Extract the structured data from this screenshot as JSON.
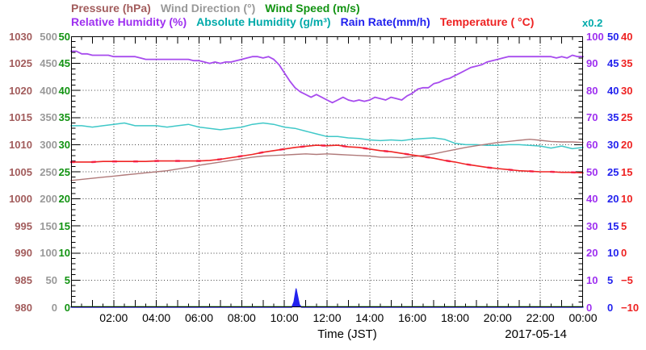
{
  "chart_data": {
    "type": "line",
    "title": "",
    "date": "2017-05-14",
    "grid": {
      "color": "#444444",
      "style": "dotted"
    },
    "x": {
      "label": "Time (JST)",
      "min_hours": 0,
      "max_hours": 24,
      "tick_labels": [
        "02:00",
        "04:00",
        "06:00",
        "08:00",
        "10:00",
        "12:00",
        "14:00",
        "16:00",
        "18:00",
        "20:00",
        "22:00",
        "00:00"
      ],
      "date": "2017-05-14"
    },
    "scale_note": {
      "label": "x0.2",
      "color": "#00AAAA",
      "applies_to": "absolute_humidity"
    },
    "axes": {
      "pressure": {
        "label": "Pressure (hPa)",
        "side": "left",
        "range": [
          980,
          1030
        ],
        "color": "#A25C5C",
        "tick_labels": [
          "1030",
          "1025",
          "1020",
          "1015",
          "1010",
          "1005",
          "1000",
          "995",
          "990",
          "985",
          "980"
        ]
      },
      "wind_direction": {
        "label": "Wind Direction (°)",
        "side": "left",
        "range": [
          0,
          500
        ],
        "color": "#999999",
        "tick_labels": [
          "500",
          "450",
          "400",
          "350",
          "300",
          "250",
          "200",
          "150",
          "100",
          "50",
          "0"
        ]
      },
      "wind_speed": {
        "label": "Wind Speed (m/s)",
        "side": "left",
        "range": [
          0,
          50
        ],
        "color": "#129312",
        "tick_labels": [
          "50",
          "45",
          "40",
          "35",
          "30",
          "25",
          "20",
          "15",
          "10",
          "5",
          "0"
        ]
      },
      "relative_humidity": {
        "label": "Relative Humidity (%)",
        "side": "right",
        "range": [
          0,
          100
        ],
        "color": "#9E30F0",
        "tick_labels": [
          "100",
          "90",
          "80",
          "70",
          "60",
          "50",
          "40",
          "30",
          "20",
          "10",
          "0"
        ]
      },
      "rain_rate": {
        "label": "Rain Rate(mm/h)",
        "side": "right",
        "range": [
          0,
          50
        ],
        "color": "#2222EE",
        "tick_labels": [
          "50",
          "45",
          "40",
          "35",
          "30",
          "25",
          "20",
          "15",
          "10",
          "5",
          "0"
        ]
      },
      "temperature": {
        "label": "Temperature ( °C)",
        "side": "right",
        "range": [
          -10,
          40
        ],
        "color": "#EE2222",
        "tick_labels": [
          "40",
          "35",
          "30",
          "25",
          "20",
          "15",
          "10",
          "5",
          "0",
          "−5",
          "−10"
        ]
      },
      "absolute_humidity": {
        "label": "Absolute Humidity (g/m³)",
        "side": "none",
        "range": [
          0,
          20
        ],
        "color": "#00AAAA",
        "note": "read on Relative Humidity axis times 0.2"
      }
    },
    "legend_rows": {
      "row1": [
        "pressure",
        "wind_direction",
        "wind_speed"
      ],
      "row2": [
        "relative_humidity",
        "absolute_humidity",
        "rain_rate",
        "temperature"
      ]
    },
    "temperature_fringe_color": "#FF3FA8",
    "series": [
      {
        "name": "wind_direction",
        "axis": "wind_direction",
        "color": "#999999",
        "width": 1.4,
        "points": [
          [
            0,
            1
          ],
          [
            24,
            1
          ]
        ]
      },
      {
        "name": "wind_speed",
        "axis": "wind_speed",
        "color": "#2BA82B",
        "width": 1.4,
        "points": [
          [
            0,
            0.1
          ],
          [
            24,
            0.1
          ]
        ]
      },
      {
        "name": "rain_rate",
        "axis": "rain_rate",
        "color": "#2222EE",
        "width": 1.3,
        "fill": true,
        "points": [
          [
            0,
            0
          ],
          [
            10.35,
            0
          ],
          [
            10.45,
            1.0
          ],
          [
            10.55,
            3.4
          ],
          [
            10.7,
            0.5
          ],
          [
            10.8,
            0
          ],
          [
            24,
            0
          ]
        ]
      },
      {
        "name": "absolute_humidity",
        "axis": "absolute_humidity",
        "color": "#3FC8C8",
        "width": 1.5,
        "x_step": 0.5,
        "values": [
          13.4,
          13.4,
          13.3,
          13.4,
          13.5,
          13.6,
          13.4,
          13.4,
          13.4,
          13.3,
          13.4,
          13.5,
          13.3,
          13.2,
          13.1,
          13.2,
          13.3,
          13.5,
          13.6,
          13.5,
          13.3,
          13.2,
          13.0,
          12.8,
          12.6,
          12.6,
          12.5,
          12.45,
          12.35,
          12.3,
          12.35,
          12.3,
          12.4,
          12.45,
          12.5,
          12.4,
          12.1,
          12.0,
          12.0,
          11.95,
          11.95,
          12.0,
          12.0,
          11.95,
          11.9,
          11.75,
          11.9,
          11.7,
          11.8
        ]
      },
      {
        "name": "pressure",
        "axis": "pressure",
        "color": "#B07A7A",
        "width": 1.4,
        "x_step": 0.5,
        "values": [
          1003.4,
          1003.6,
          1003.8,
          1004.0,
          1004.2,
          1004.4,
          1004.6,
          1004.8,
          1005.0,
          1005.2,
          1005.5,
          1005.8,
          1006.2,
          1006.5,
          1006.8,
          1007.1,
          1007.4,
          1007.7,
          1007.9,
          1008.0,
          1008.1,
          1008.2,
          1008.3,
          1008.2,
          1008.3,
          1008.2,
          1008.1,
          1008.0,
          1007.9,
          1007.7,
          1007.7,
          1007.6,
          1007.8,
          1008.0,
          1008.3,
          1008.7,
          1009.1,
          1009.5,
          1009.8,
          1010.1,
          1010.4,
          1010.6,
          1010.8,
          1011.0,
          1010.8,
          1010.6,
          1010.5,
          1010.5,
          1010.4
        ]
      },
      {
        "name": "temperature",
        "axis": "temperature",
        "color": "#F02525",
        "width": 1.6,
        "x_step": 0.5,
        "values": [
          16.8,
          16.8,
          16.8,
          16.9,
          16.9,
          16.9,
          16.9,
          16.9,
          17.0,
          17.0,
          17.0,
          17.0,
          17.0,
          17.1,
          17.3,
          17.6,
          17.9,
          18.2,
          18.6,
          18.9,
          19.2,
          19.5,
          19.7,
          19.9,
          19.8,
          19.9,
          19.6,
          19.5,
          19.2,
          18.9,
          18.7,
          18.4,
          18.1,
          17.8,
          17.5,
          17.1,
          16.8,
          16.4,
          16.1,
          15.8,
          15.6,
          15.4,
          15.2,
          15.1,
          15.0,
          15.0,
          14.9,
          14.9,
          14.8
        ]
      },
      {
        "name": "relative_humidity",
        "axis": "relative_humidity",
        "color": "#A74BEE",
        "width": 1.8,
        "x_step": 0.25,
        "values": [
          94.5,
          94.5,
          93.5,
          93.5,
          93,
          93,
          93,
          93,
          92.5,
          92.5,
          92.5,
          92.5,
          92.5,
          92,
          91.5,
          91.5,
          91.5,
          91.5,
          91.5,
          91.5,
          91.5,
          91.5,
          91.5,
          91,
          91,
          90.5,
          90,
          90.5,
          90,
          90.5,
          90.5,
          91,
          91.5,
          92,
          92.5,
          92.5,
          92,
          92.5,
          91.5,
          89.5,
          86.5,
          83.5,
          81,
          79.5,
          78.5,
          77.5,
          78.5,
          77.5,
          76.5,
          75.5,
          76.5,
          77.5,
          76.5,
          76,
          76.5,
          76,
          76.5,
          77.5,
          77,
          76.5,
          77.5,
          77,
          76.5,
          78,
          79,
          80.5,
          81,
          81,
          82.5,
          83,
          84,
          84.5,
          85.5,
          86.5,
          87.5,
          88.5,
          89,
          89.5,
          90.5,
          91,
          91.5,
          92,
          92.5,
          92.5,
          92.5,
          92.5,
          92.5,
          92.5,
          92.5,
          92.5,
          92.5,
          92,
          92.5,
          92,
          93,
          92.5,
          92.5
        ]
      }
    ]
  }
}
